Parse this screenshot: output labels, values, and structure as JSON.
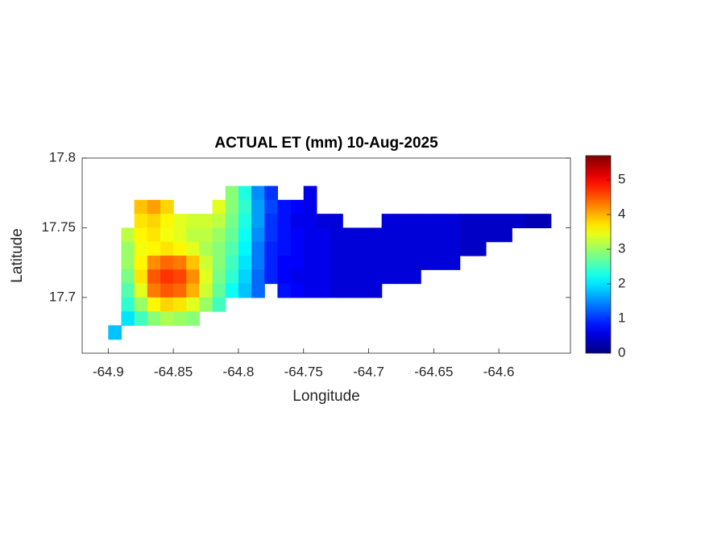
{
  "chart_data": {
    "type": "heatmap",
    "title": "ACTUAL ET (mm) 10-Aug-2025",
    "xlabel": "Longitude",
    "ylabel": "Latitude",
    "colormap": "jet",
    "xlim": [
      -64.92,
      -64.545
    ],
    "xticks": [
      -64.9,
      -64.85,
      -64.8,
      -64.75,
      -64.7,
      -64.65,
      -64.6
    ],
    "ylim": [
      17.66,
      17.8
    ],
    "yticks": [
      17.7,
      17.75,
      17.8
    ],
    "clim": [
      0,
      5.7
    ],
    "cticks": [
      0,
      1,
      2,
      3,
      4,
      5
    ],
    "x": [
      -64.895,
      -64.885,
      -64.875,
      -64.865,
      -64.855,
      -64.845,
      -64.835,
      -64.825,
      -64.815,
      -64.805,
      -64.795,
      -64.785,
      -64.775,
      -64.765,
      -64.755,
      -64.745,
      -64.735,
      -64.725,
      -64.715,
      -64.705,
      -64.695,
      -64.685,
      -64.675,
      -64.665,
      -64.655,
      -64.645,
      -64.635,
      -64.625,
      -64.615,
      -64.605,
      -64.595,
      -64.585,
      -64.575,
      -64.565
    ],
    "y": [
      17.785,
      17.775,
      17.765,
      17.755,
      17.745,
      17.735,
      17.725,
      17.715,
      17.705,
      17.695,
      17.685,
      17.675
    ],
    "z": [
      [
        null,
        null,
        null,
        null,
        null,
        null,
        null,
        null,
        null,
        null,
        null,
        null,
        null,
        null,
        null,
        null,
        null,
        null,
        null,
        null,
        null,
        null,
        null,
        null,
        null,
        null,
        null,
        null,
        null,
        null,
        null,
        null,
        null,
        null
      ],
      [
        null,
        null,
        null,
        null,
        null,
        null,
        null,
        null,
        null,
        2.9,
        2.3,
        1.5,
        1.0,
        null,
        null,
        0.6,
        null,
        null,
        null,
        null,
        null,
        null,
        null,
        null,
        null,
        null,
        null,
        null,
        null,
        null,
        null,
        null,
        null,
        null
      ],
      [
        null,
        null,
        3.9,
        4.1,
        3.8,
        null,
        null,
        null,
        3.4,
        2.9,
        2.4,
        1.6,
        1.1,
        0.8,
        0.7,
        0.6,
        null,
        null,
        null,
        null,
        null,
        null,
        null,
        null,
        null,
        null,
        null,
        null,
        null,
        null,
        null,
        null,
        null,
        null
      ],
      [
        null,
        null,
        3.7,
        3.8,
        3.6,
        3.4,
        3.3,
        3.3,
        3.2,
        2.8,
        2.3,
        1.6,
        1.0,
        0.8,
        0.6,
        0.6,
        0.5,
        0.5,
        null,
        null,
        null,
        0.5,
        0.5,
        0.5,
        0.5,
        0.5,
        0.5,
        0.4,
        0.4,
        0.4,
        0.4,
        0.4,
        0.3,
        0.3
      ],
      [
        null,
        3.2,
        3.6,
        3.7,
        3.5,
        3.4,
        3.2,
        3.2,
        3.0,
        2.7,
        2.2,
        1.5,
        1.0,
        0.8,
        0.7,
        0.6,
        0.6,
        0.5,
        0.5,
        0.5,
        0.5,
        0.5,
        0.5,
        0.5,
        0.5,
        0.5,
        0.5,
        0.4,
        0.4,
        0.4,
        0.4,
        null,
        null,
        null
      ],
      [
        null,
        3.0,
        3.5,
        3.6,
        3.7,
        3.6,
        3.4,
        3.1,
        2.9,
        2.6,
        2.1,
        1.4,
        0.9,
        0.8,
        0.7,
        0.6,
        0.6,
        0.5,
        0.5,
        0.5,
        0.5,
        0.5,
        0.5,
        0.5,
        0.5,
        0.5,
        0.5,
        0.4,
        0.4,
        null,
        null,
        null,
        null,
        null
      ],
      [
        null,
        3.0,
        3.6,
        4.2,
        4.4,
        4.3,
        3.9,
        3.3,
        2.9,
        2.5,
        2.0,
        1.4,
        0.9,
        0.7,
        0.7,
        0.6,
        0.6,
        0.5,
        0.5,
        0.5,
        0.5,
        0.5,
        0.5,
        0.5,
        0.5,
        0.5,
        0.5,
        null,
        null,
        null,
        null,
        null,
        null,
        null
      ],
      [
        null,
        2.8,
        3.7,
        4.5,
        4.7,
        4.6,
        4.2,
        3.4,
        2.8,
        2.4,
        1.9,
        1.3,
        0.9,
        0.7,
        0.6,
        0.6,
        0.6,
        0.5,
        0.5,
        0.5,
        0.5,
        0.5,
        0.5,
        0.5,
        null,
        null,
        null,
        null,
        null,
        null,
        null,
        null,
        null,
        null
      ],
      [
        null,
        2.6,
        3.4,
        4.3,
        4.5,
        4.4,
        4.0,
        3.3,
        2.7,
        2.2,
        1.8,
        1.3,
        null,
        0.8,
        0.7,
        0.6,
        0.6,
        0.5,
        0.5,
        0.5,
        0.5,
        null,
        null,
        null,
        null,
        null,
        null,
        null,
        null,
        null,
        null,
        null,
        null,
        null
      ],
      [
        null,
        2.4,
        3.0,
        3.6,
        3.8,
        3.7,
        3.4,
        3.0,
        2.5,
        null,
        null,
        null,
        null,
        null,
        null,
        null,
        null,
        null,
        null,
        null,
        null,
        null,
        null,
        null,
        null,
        null,
        null,
        null,
        null,
        null,
        null,
        null,
        null,
        null
      ],
      [
        null,
        2.0,
        2.5,
        2.9,
        3.1,
        3.0,
        2.9,
        null,
        null,
        null,
        null,
        null,
        null,
        null,
        null,
        null,
        null,
        null,
        null,
        null,
        null,
        null,
        null,
        null,
        null,
        null,
        null,
        null,
        null,
        null,
        null,
        null,
        null,
        null
      ],
      [
        1.8,
        null,
        null,
        null,
        null,
        null,
        null,
        null,
        null,
        null,
        null,
        null,
        null,
        null,
        null,
        null,
        null,
        null,
        null,
        null,
        null,
        null,
        null,
        null,
        null,
        null,
        null,
        null,
        null,
        null,
        null,
        null,
        null,
        null
      ]
    ]
  }
}
